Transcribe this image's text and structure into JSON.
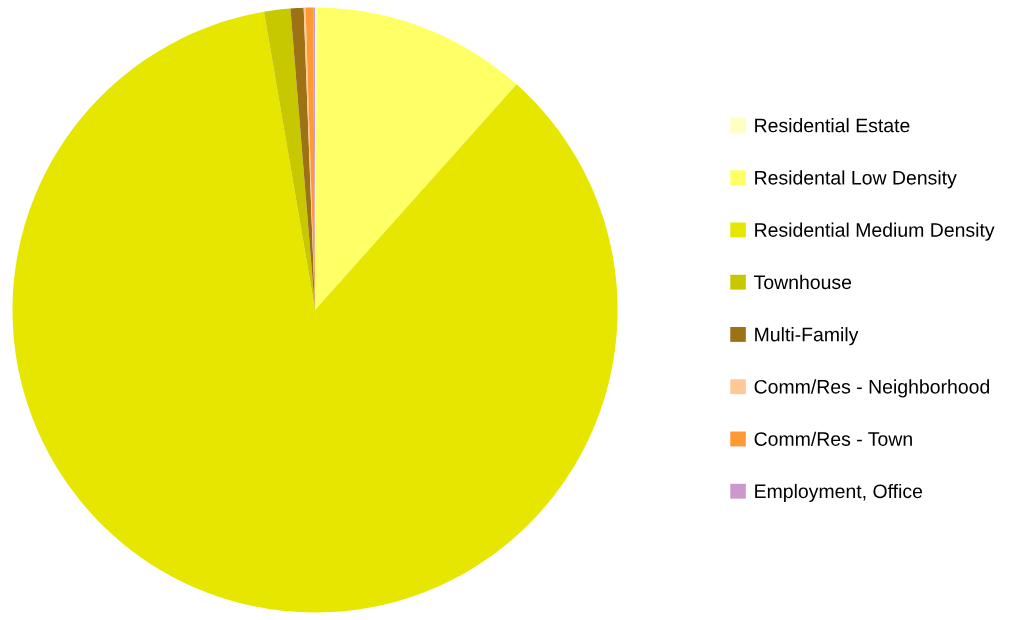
{
  "chart_data": {
    "type": "pie",
    "categories": [
      "Residential Estate",
      "Residental Low Density",
      "Residential Medium Density",
      "Townhouse",
      "Multi-Family",
      "Comm/Res - Neighborhood",
      "Comm/Res - Town",
      "Employment, Office"
    ],
    "values": [
      0.1,
      11.5,
      85.7,
      1.4,
      0.7,
      0.1,
      0.4,
      0.1
    ],
    "colors": [
      "#ffffc0",
      "#ffff66",
      "#e6e600",
      "#c8c800",
      "#9c7214",
      "#ffc896",
      "#ff9933",
      "#cc99cc"
    ],
    "legend": "right"
  }
}
